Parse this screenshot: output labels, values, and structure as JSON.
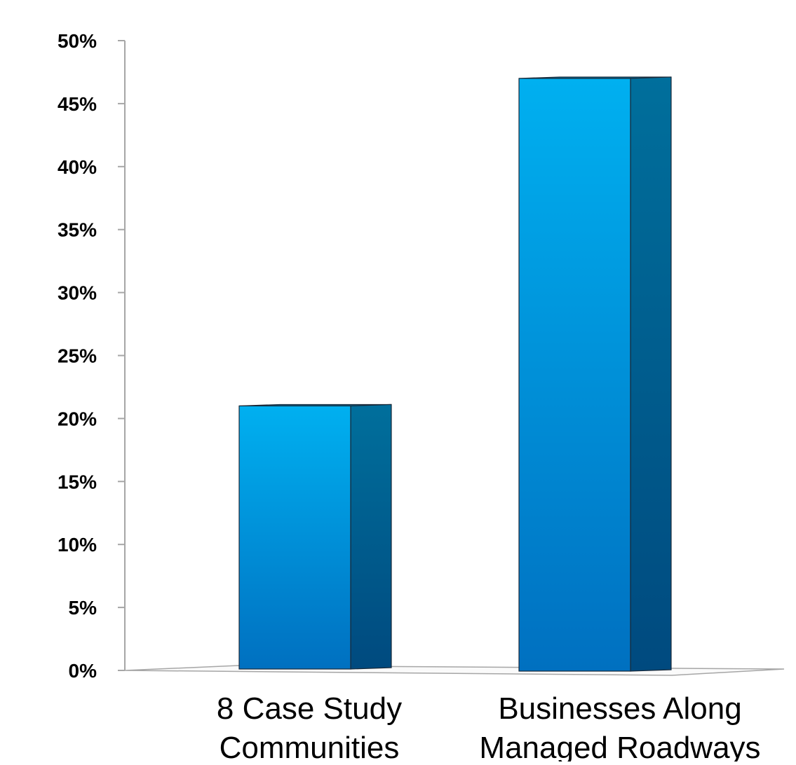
{
  "chart_data": {
    "type": "bar",
    "categories": [
      [
        "8 Case Study",
        "Communities"
      ],
      [
        "Businesses Along",
        "Managed Roadways"
      ]
    ],
    "values": [
      21,
      47
    ],
    "ylim": [
      0,
      50
    ],
    "yticks": [
      0,
      5,
      10,
      15,
      20,
      25,
      30,
      35,
      40,
      45,
      50
    ],
    "ytick_labels": [
      "0%",
      "5%",
      "10%",
      "15%",
      "20%",
      "25%",
      "30%",
      "35%",
      "40%",
      "45%",
      "50%"
    ],
    "grid": false,
    "legend": "none",
    "style": "3d-column",
    "colors": {
      "front_top": "#00b0f0",
      "front_bottom": "#0070c0",
      "side_top": "#006f9c",
      "side_bottom": "#004a7f",
      "axis": "#a6a6a6"
    }
  }
}
